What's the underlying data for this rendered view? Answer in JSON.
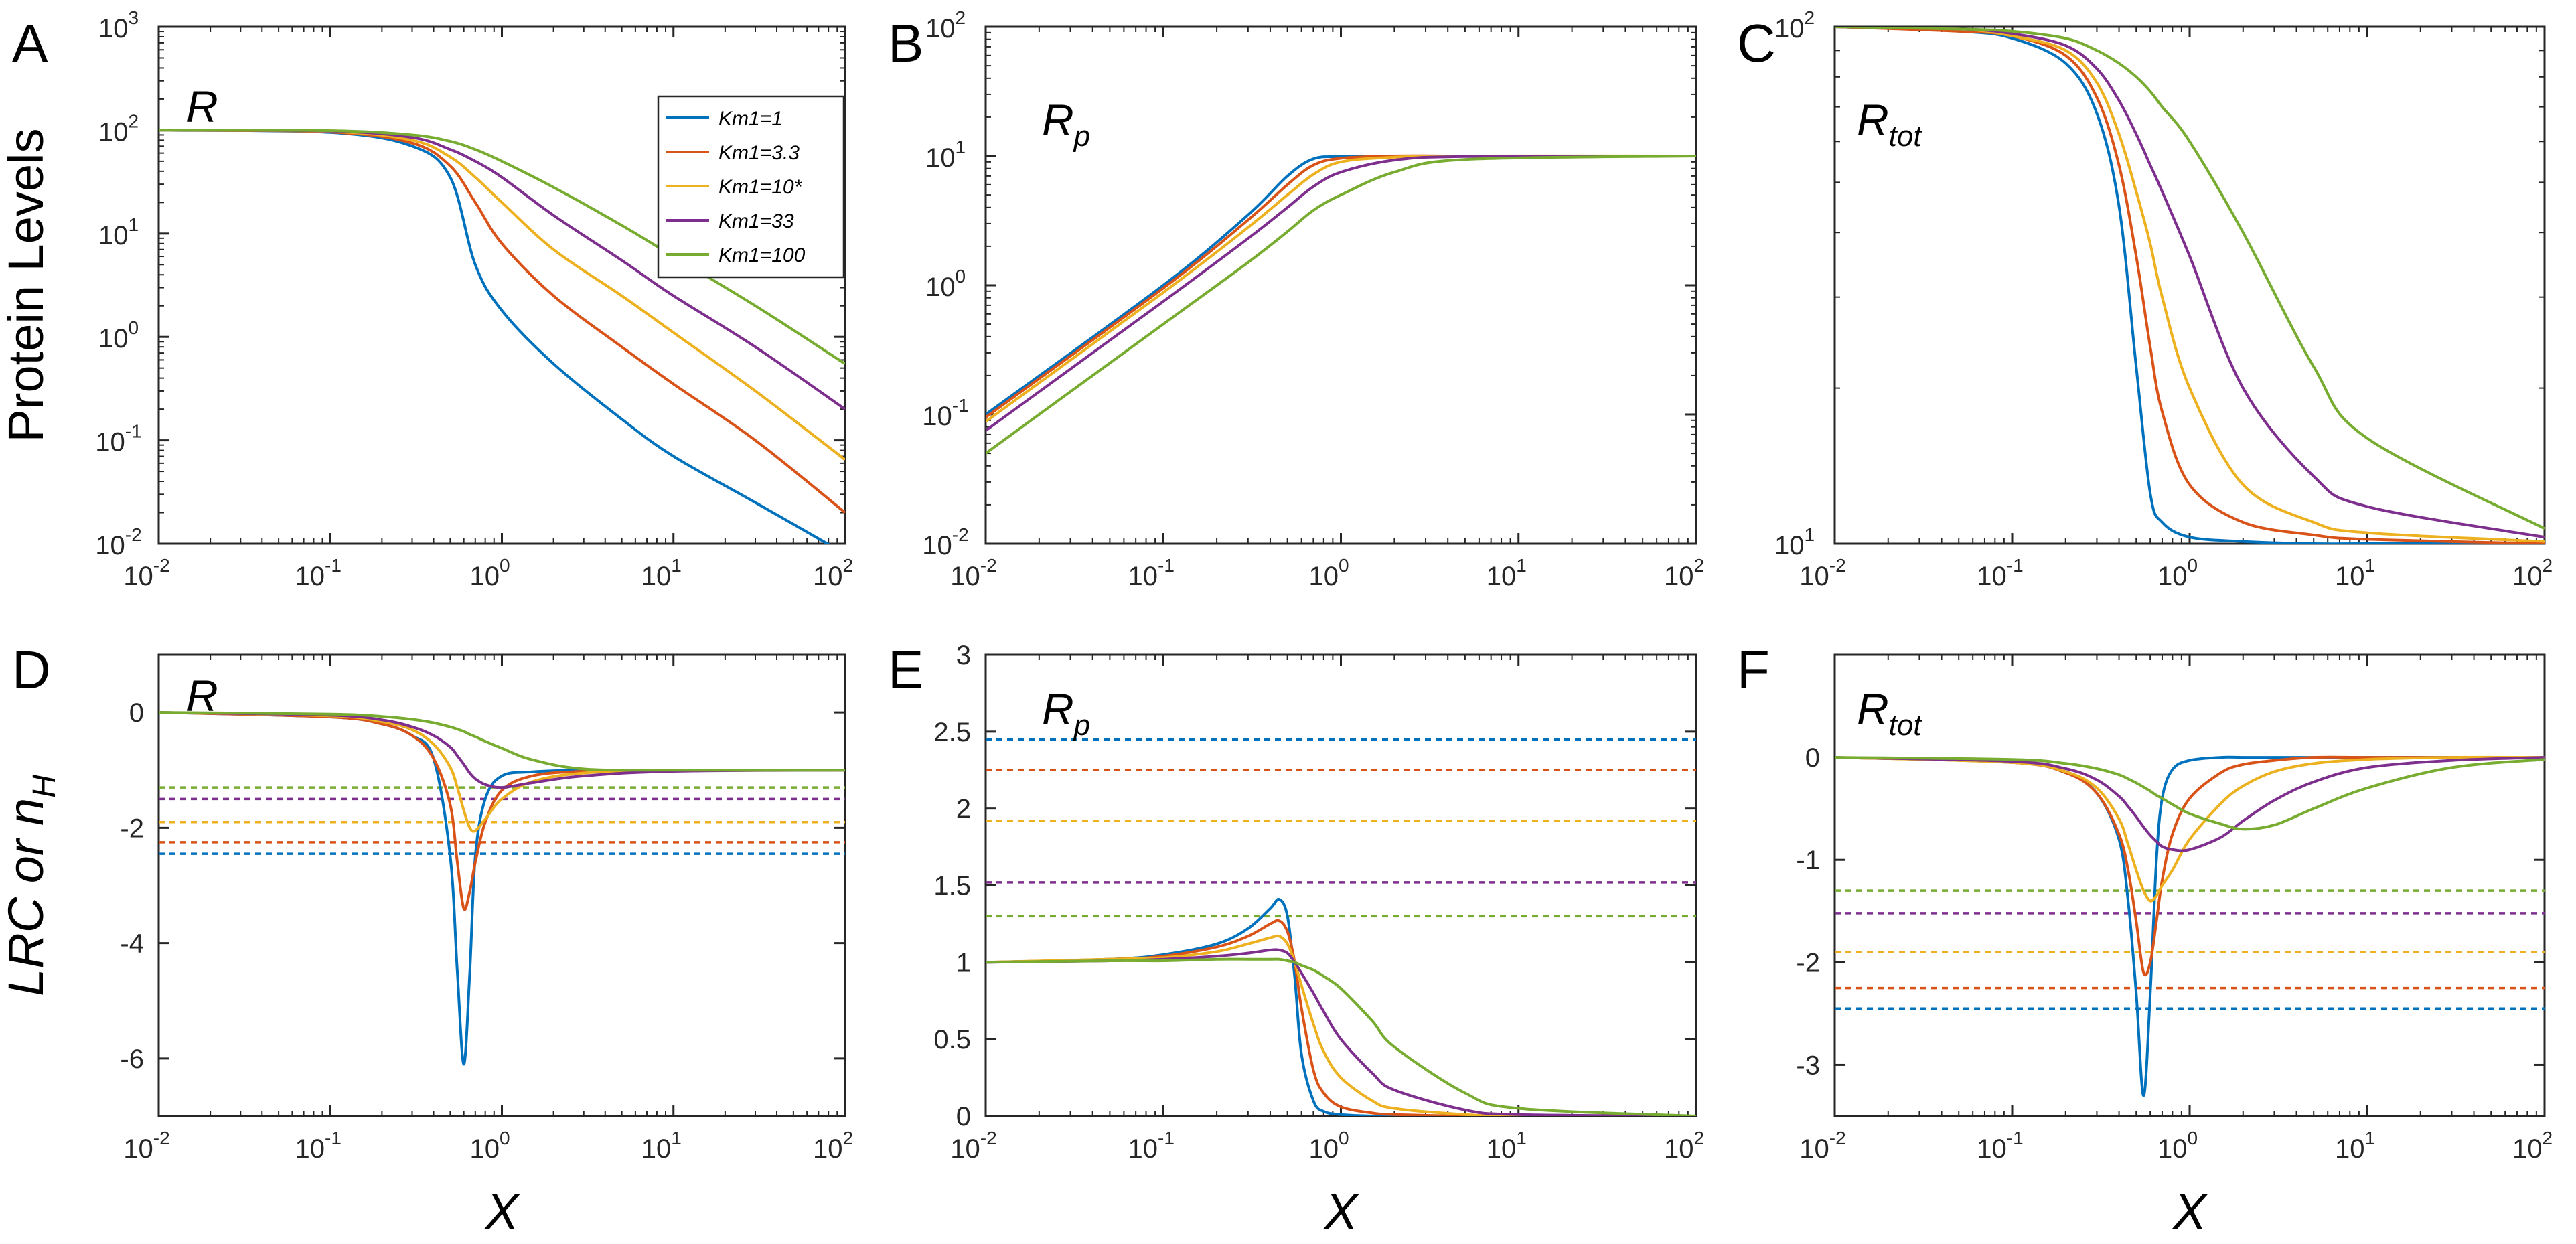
{
  "figure": {
    "colors": [
      "#0072BD",
      "#D95319",
      "#EDB120",
      "#7E2F8E",
      "#77AC30"
    ],
    "axis_color": "#262626"
  },
  "legend": {
    "panel": "A",
    "placement": "top-right",
    "entries": [
      "Km1=1",
      "Km1=3.3",
      "Km1=10*",
      "Km1=33",
      "Km1=100"
    ]
  },
  "chart_data": [
    {
      "id": "A",
      "letter": "A",
      "type": "line",
      "title": {
        "base": "R",
        "sub": ""
      },
      "ylabel": {
        "text": "Protein Levels"
      },
      "xlabel": {
        "text": ""
      },
      "xscale": "log",
      "yscale": "log",
      "xlim": [
        0.01,
        100
      ],
      "ylim": [
        0.01,
        1000
      ],
      "x_ticks": [
        {
          "base": "10",
          "exp": "-2"
        },
        {
          "base": "10",
          "exp": "-1"
        },
        {
          "base": "10",
          "exp": "0"
        },
        {
          "base": "10",
          "exp": "1"
        },
        {
          "base": "10",
          "exp": "2"
        }
      ],
      "y_ticks": [
        {
          "base": "10",
          "exp": "-2"
        },
        {
          "base": "10",
          "exp": "-1"
        },
        {
          "base": "10",
          "exp": "0"
        },
        {
          "base": "10",
          "exp": "1"
        },
        {
          "base": "10",
          "exp": "2"
        },
        {
          "base": "10",
          "exp": "3"
        }
      ],
      "x": [
        0.01,
        0.1,
        0.3,
        0.5,
        0.7,
        1,
        2,
        5,
        10,
        30,
        100
      ],
      "series": [
        {
          "name": "Km1=1",
          "values": [
            100,
            95,
            70,
            35,
            5,
            1.8,
            0.55,
            0.16,
            0.07,
            0.025,
            0.008
          ]
        },
        {
          "name": "Km1=3.3",
          "values": [
            100,
            96,
            75,
            45,
            20,
            8,
            2.5,
            0.8,
            0.35,
            0.1,
            0.02
          ]
        },
        {
          "name": "Km1=10*",
          "values": [
            100,
            97,
            80,
            55,
            35,
            20,
            7,
            2.5,
            1.1,
            0.3,
            0.065
          ]
        },
        {
          "name": "Km1=33",
          "values": [
            100,
            98,
            85,
            65,
            50,
            35,
            15,
            5.5,
            2.5,
            0.8,
            0.2
          ]
        },
        {
          "name": "Km1=100",
          "values": [
            100,
            99,
            90,
            78,
            65,
            50,
            28,
            12,
            6,
            2,
            0.55
          ]
        }
      ]
    },
    {
      "id": "B",
      "letter": "B",
      "type": "line",
      "title": {
        "base": "R",
        "sub": "p"
      },
      "ylabel": {
        "text": ""
      },
      "xlabel": {
        "text": ""
      },
      "xscale": "log",
      "yscale": "log",
      "xlim": [
        0.01,
        100
      ],
      "ylim": [
        0.01,
        100
      ],
      "x_ticks": [
        {
          "base": "10",
          "exp": "-2"
        },
        {
          "base": "10",
          "exp": "-1"
        },
        {
          "base": "10",
          "exp": "0"
        },
        {
          "base": "10",
          "exp": "1"
        },
        {
          "base": "10",
          "exp": "2"
        }
      ],
      "y_ticks": [
        {
          "base": "10",
          "exp": "-2"
        },
        {
          "base": "10",
          "exp": "-1"
        },
        {
          "base": "10",
          "exp": "0"
        },
        {
          "base": "10",
          "exp": "1"
        },
        {
          "base": "10",
          "exp": "2"
        }
      ],
      "x": [
        0.01,
        0.1,
        0.3,
        0.5,
        0.7,
        1,
        2,
        5,
        100
      ],
      "series": [
        {
          "name": "Km1=1",
          "values": [
            0.1,
            1.0,
            3.5,
            7,
            9.5,
            9.9,
            10,
            10,
            10
          ]
        },
        {
          "name": "Km1=3.3",
          "values": [
            0.095,
            0.95,
            3.2,
            6,
            8.5,
            9.6,
            10,
            10,
            10
          ]
        },
        {
          "name": "Km1=10*",
          "values": [
            0.088,
            0.88,
            2.8,
            5,
            7.2,
            9,
            9.8,
            10,
            10
          ]
        },
        {
          "name": "Km1=33",
          "values": [
            0.075,
            0.75,
            2.3,
            4,
            5.8,
            7.5,
            9.3,
            9.9,
            10
          ]
        },
        {
          "name": "Km1=100",
          "values": [
            0.05,
            0.5,
            1.5,
            2.6,
            3.8,
            5,
            7.5,
            9.4,
            10
          ]
        }
      ]
    },
    {
      "id": "C",
      "letter": "C",
      "type": "line",
      "title": {
        "base": "R",
        "sub": "tot"
      },
      "ylabel": {
        "text": ""
      },
      "xlabel": {
        "text": ""
      },
      "xscale": "log",
      "yscale": "log",
      "xlim": [
        0.01,
        100
      ],
      "ylim": [
        10,
        100
      ],
      "x_ticks": [
        {
          "base": "10",
          "exp": "-2"
        },
        {
          "base": "10",
          "exp": "-1"
        },
        {
          "base": "10",
          "exp": "0"
        },
        {
          "base": "10",
          "exp": "1"
        },
        {
          "base": "10",
          "exp": "2"
        }
      ],
      "y_ticks": [
        {
          "base": "10",
          "exp": "1"
        },
        {
          "base": "10",
          "exp": "2"
        }
      ],
      "x": [
        0.01,
        0.05,
        0.1,
        0.2,
        0.3,
        0.4,
        0.5,
        0.6,
        0.7,
        1,
        2,
        5,
        10,
        100
      ],
      "series": [
        {
          "name": "Km1=1",
          "values": [
            100,
            98,
            95,
            85,
            68,
            45,
            22,
            12.5,
            11,
            10.3,
            10.1,
            10,
            10,
            10
          ]
        },
        {
          "name": "Km1=3.3",
          "values": [
            100,
            98,
            96,
            88,
            73,
            54,
            36,
            24,
            18,
            13,
            11,
            10.4,
            10.2,
            10
          ]
        },
        {
          "name": "Km1=10*",
          "values": [
            100,
            99,
            96,
            90,
            78,
            62,
            48,
            38,
            30,
            20,
            13,
            11,
            10.5,
            10.1
          ]
        },
        {
          "name": "Km1=33",
          "values": [
            100,
            99,
            97,
            92,
            83,
            72,
            62,
            54,
            48,
            36,
            20,
            13.5,
            11.8,
            10.3
          ]
        },
        {
          "name": "Km1=100",
          "values": [
            100,
            99,
            98,
            95,
            90,
            85,
            80,
            75,
            70,
            60,
            40,
            22,
            16,
            10.7
          ]
        }
      ]
    },
    {
      "id": "D",
      "letter": "D",
      "type": "line",
      "title": {
        "base": "R",
        "sub": ""
      },
      "ylabel": {
        "text": "LRC or n",
        "sub": "H"
      },
      "xlabel": {
        "text": "X"
      },
      "xscale": "log",
      "yscale": "linear",
      "xlim": [
        0.01,
        100
      ],
      "ylim": [
        -7,
        1
      ],
      "x_ticks": [
        {
          "base": "10",
          "exp": "-2"
        },
        {
          "base": "10",
          "exp": "-1"
        },
        {
          "base": "10",
          "exp": "0"
        },
        {
          "base": "10",
          "exp": "1"
        },
        {
          "base": "10",
          "exp": "2"
        }
      ],
      "y_ticks": [
        {
          "base": "-6",
          "exp": ""
        },
        {
          "base": "-4",
          "exp": ""
        },
        {
          "base": "-2",
          "exp": ""
        },
        {
          "base": "0",
          "exp": ""
        }
      ],
      "x": [
        0.01,
        0.1,
        0.2,
        0.3,
        0.4,
        0.5,
        0.55,
        0.6,
        0.65,
        0.7,
        0.8,
        1,
        1.5,
        3,
        10,
        100
      ],
      "series": [
        {
          "name": "Km1=1",
          "values": [
            0,
            -0.08,
            -0.2,
            -0.4,
            -0.8,
            -2.5,
            -4.5,
            -6.1,
            -4.5,
            -2.5,
            -1.5,
            -1.1,
            -1.03,
            -1,
            -1,
            -1
          ]
        },
        {
          "name": "Km1=3.3",
          "values": [
            0,
            -0.08,
            -0.2,
            -0.4,
            -0.8,
            -1.6,
            -2.6,
            -3.4,
            -3.1,
            -2.6,
            -1.9,
            -1.35,
            -1.1,
            -1.02,
            -1,
            -1
          ]
        },
        {
          "name": "Km1=10*",
          "values": [
            0,
            -0.06,
            -0.16,
            -0.3,
            -0.55,
            -0.95,
            -1.3,
            -1.7,
            -2,
            -2.05,
            -1.85,
            -1.5,
            -1.2,
            -1.05,
            -1,
            -1
          ]
        },
        {
          "name": "Km1=33",
          "values": [
            0,
            -0.05,
            -0.13,
            -0.25,
            -0.4,
            -0.6,
            -0.75,
            -0.9,
            -1.05,
            -1.15,
            -1.25,
            -1.3,
            -1.22,
            -1.1,
            -1.02,
            -1
          ]
        },
        {
          "name": "Km1=100",
          "values": [
            0,
            -0.03,
            -0.07,
            -0.12,
            -0.18,
            -0.25,
            -0.29,
            -0.33,
            -0.38,
            -0.42,
            -0.5,
            -0.62,
            -0.82,
            -0.98,
            -1,
            -1
          ]
        }
      ],
      "dashed_levels": [
        -2.45,
        -2.25,
        -1.9,
        -1.5,
        -1.3
      ]
    },
    {
      "id": "E",
      "letter": "E",
      "type": "line",
      "title": {
        "base": "R",
        "sub": "p"
      },
      "ylabel": {
        "text": ""
      },
      "xlabel": {
        "text": "X"
      },
      "xscale": "log",
      "yscale": "linear",
      "xlim": [
        0.01,
        100
      ],
      "ylim": [
        0,
        3
      ],
      "x_ticks": [
        {
          "base": "10",
          "exp": "-2"
        },
        {
          "base": "10",
          "exp": "-1"
        },
        {
          "base": "10",
          "exp": "0"
        },
        {
          "base": "10",
          "exp": "1"
        },
        {
          "base": "10",
          "exp": "2"
        }
      ],
      "y_ticks": [
        {
          "base": "0",
          "exp": ""
        },
        {
          "base": "0.5",
          "exp": ""
        },
        {
          "base": "1",
          "exp": ""
        },
        {
          "base": "1.5",
          "exp": ""
        },
        {
          "base": "2",
          "exp": ""
        },
        {
          "base": "2.5",
          "exp": ""
        },
        {
          "base": "3",
          "exp": ""
        }
      ],
      "x": [
        0.01,
        0.05,
        0.1,
        0.2,
        0.3,
        0.4,
        0.45,
        0.5,
        0.55,
        0.6,
        0.7,
        0.8,
        1,
        1.5,
        2,
        5,
        10,
        100
      ],
      "series": [
        {
          "name": "Km1=1",
          "values": [
            1,
            1.02,
            1.05,
            1.12,
            1.22,
            1.35,
            1.41,
            1.3,
            0.9,
            0.4,
            0.1,
            0.03,
            0.01,
            0,
            0,
            0,
            0,
            0
          ]
        },
        {
          "name": "Km1=3.3",
          "values": [
            1,
            1.02,
            1.04,
            1.1,
            1.17,
            1.25,
            1.27,
            1.2,
            1.0,
            0.7,
            0.3,
            0.15,
            0.06,
            0.02,
            0.01,
            0,
            0,
            0
          ]
        },
        {
          "name": "Km1=10*",
          "values": [
            1,
            1.02,
            1.03,
            1.07,
            1.12,
            1.16,
            1.17,
            1.12,
            1.0,
            0.85,
            0.6,
            0.42,
            0.25,
            0.1,
            0.05,
            0.01,
            0,
            0
          ]
        },
        {
          "name": "Km1=33",
          "values": [
            1,
            1.01,
            1.02,
            1.04,
            1.06,
            1.08,
            1.08,
            1.06,
            1.0,
            0.93,
            0.8,
            0.68,
            0.5,
            0.28,
            0.17,
            0.04,
            0.01,
            0
          ]
        },
        {
          "name": "Km1=100",
          "values": [
            1,
            1.01,
            1.01,
            1.02,
            1.02,
            1.02,
            1.02,
            1.01,
            1.0,
            0.98,
            0.95,
            0.91,
            0.83,
            0.62,
            0.45,
            0.15,
            0.05,
            0
          ]
        }
      ],
      "dashed_levels": [
        2.45,
        2.25,
        1.92,
        1.52,
        1.3
      ]
    },
    {
      "id": "F",
      "letter": "F",
      "type": "line",
      "title": {
        "base": "R",
        "sub": "tot"
      },
      "ylabel": {
        "text": ""
      },
      "xlabel": {
        "text": "X"
      },
      "xscale": "log",
      "yscale": "linear",
      "xlim": [
        0.01,
        100
      ],
      "ylim": [
        -3.5,
        1
      ],
      "x_ticks": [
        {
          "base": "10",
          "exp": "-2"
        },
        {
          "base": "10",
          "exp": "-1"
        },
        {
          "base": "10",
          "exp": "0"
        },
        {
          "base": "10",
          "exp": "1"
        },
        {
          "base": "10",
          "exp": "2"
        }
      ],
      "y_ticks": [
        {
          "base": "-3",
          "exp": ""
        },
        {
          "base": "-2",
          "exp": ""
        },
        {
          "base": "-1",
          "exp": ""
        },
        {
          "base": "0",
          "exp": ""
        }
      ],
      "x": [
        0.01,
        0.1,
        0.2,
        0.3,
        0.4,
        0.45,
        0.5,
        0.55,
        0.6,
        0.65,
        0.7,
        0.8,
        1,
        1.5,
        2,
        3,
        5,
        10,
        30,
        100
      ],
      "series": [
        {
          "name": "Km1=1",
          "values": [
            0,
            -0.05,
            -0.15,
            -0.35,
            -0.8,
            -1.4,
            -2.3,
            -3.3,
            -2.3,
            -1.0,
            -0.4,
            -0.12,
            -0.03,
            0,
            0,
            0,
            0,
            0,
            0,
            0
          ]
        },
        {
          "name": "Km1=3.3",
          "values": [
            0,
            -0.05,
            -0.15,
            -0.35,
            -0.75,
            -1.1,
            -1.6,
            -2.1,
            -2.0,
            -1.6,
            -1.2,
            -0.75,
            -0.4,
            -0.15,
            -0.07,
            -0.03,
            0,
            0,
            0,
            0
          ]
        },
        {
          "name": "Km1=10*",
          "values": [
            0,
            -0.05,
            -0.14,
            -0.3,
            -0.6,
            -0.85,
            -1.1,
            -1.3,
            -1.4,
            -1.35,
            -1.25,
            -1.1,
            -0.8,
            -0.45,
            -0.28,
            -0.14,
            -0.06,
            -0.02,
            0,
            0
          ]
        },
        {
          "name": "Km1=33",
          "values": [
            0,
            -0.04,
            -0.11,
            -0.22,
            -0.38,
            -0.48,
            -0.58,
            -0.68,
            -0.76,
            -0.82,
            -0.87,
            -0.9,
            -0.9,
            -0.78,
            -0.62,
            -0.42,
            -0.24,
            -0.1,
            -0.03,
            0
          ]
        },
        {
          "name": "Km1=100",
          "values": [
            0,
            -0.02,
            -0.06,
            -0.11,
            -0.17,
            -0.21,
            -0.25,
            -0.29,
            -0.33,
            -0.37,
            -0.4,
            -0.46,
            -0.55,
            -0.65,
            -0.7,
            -0.66,
            -0.5,
            -0.3,
            -0.1,
            -0.02
          ]
        }
      ],
      "dashed_levels": [
        -2.45,
        -2.25,
        -1.9,
        -1.52,
        -1.3
      ]
    }
  ]
}
